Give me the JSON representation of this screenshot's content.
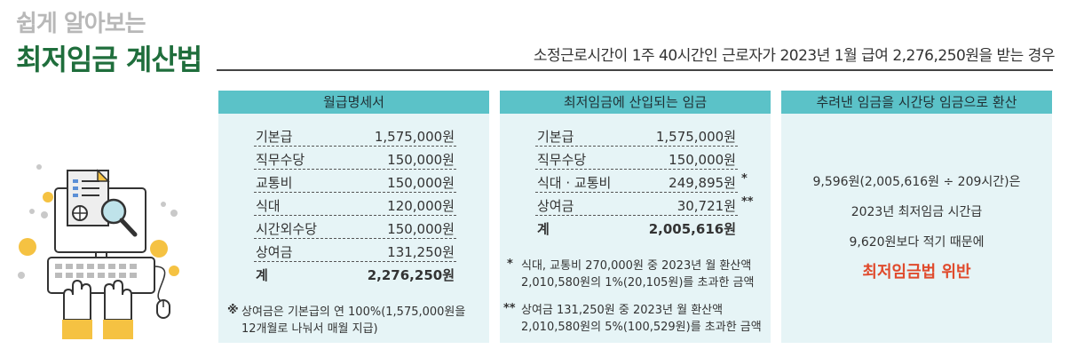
{
  "header": {
    "subtitle": "쉽게 알아보는",
    "title": "최저임금 계산법",
    "scenario": "소정근로시간이 1주 40시간인 근로자가 2023년 1월 급여 2,276,250원을 받는 경우"
  },
  "panel1": {
    "heading": "월급명세서",
    "rows": [
      {
        "label": "기본급",
        "value": "1,575,000원"
      },
      {
        "label": "직무수당",
        "value": "150,000원"
      },
      {
        "label": "교통비",
        "value": "150,000원"
      },
      {
        "label": "식대",
        "value": "120,000원"
      },
      {
        "label": "시간외수당",
        "value": "150,000원"
      },
      {
        "label": "상여금",
        "value": "131,250원"
      }
    ],
    "total": {
      "label": "계",
      "value": "2,276,250원"
    },
    "note_mark": "※",
    "note": "상여금은 기본급의 연 100%(1,575,000원을 12개월로 나눠서 매월 지급)"
  },
  "panel2": {
    "heading": "최저임금에 산입되는 임금",
    "rows": [
      {
        "label": "기본급",
        "value": "1,575,000원",
        "mark": ""
      },
      {
        "label": "직무수당",
        "value": "150,000원",
        "mark": ""
      },
      {
        "label": "식대 · 교통비",
        "value": "249,895원",
        "mark": "*"
      },
      {
        "label": "상여금",
        "value": "30,721원",
        "mark": "**"
      }
    ],
    "total": {
      "label": "계",
      "value": "2,005,616원"
    },
    "note1_mark": "*",
    "note1": "식대, 교통비 270,000원 중 2023년 월 환산액 2,010,580원의 1%(20,105원)를 초과한 금액",
    "note2_mark": "**",
    "note2": "상여금 131,250원 중 2023년 월 환산액 2,010,580원의 5%(100,529원)를 초과한 금액"
  },
  "panel3": {
    "heading": "추려낸 임금을 시간당 임금으로 환산",
    "line1": "9,596원(2,005,616원 ÷ 209시간)은",
    "line2": "2023년 최저임금 시간급",
    "line3": "9,620원보다 적기 때문에",
    "result": "최저임금법 위반"
  },
  "colors": {
    "title_green": "#1f6e3c",
    "subtitle_gray": "#b8b8b8",
    "panel_head": "#5bc2c8",
    "panel_bg": "#e6f4f6",
    "result_red": "#e04a2c",
    "accent_yellow": "#f5c242"
  }
}
